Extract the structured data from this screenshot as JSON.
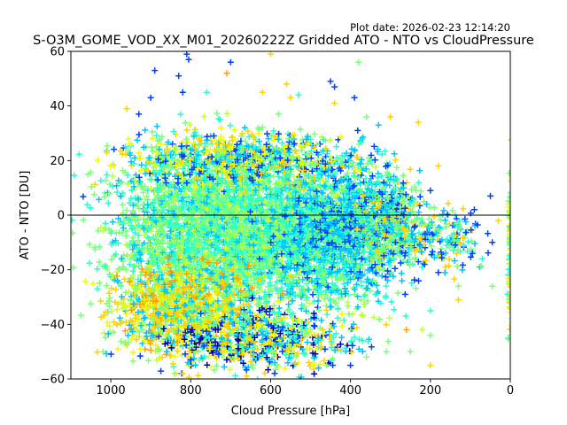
{
  "chart_data": {
    "type": "scatter",
    "title": "S-O3M_GOME_VOD_XX_M01_20260222Z Gridded ATO - NTO vs CloudPressure",
    "plot_date": "Plot date: 2026-02-23 12:14:20",
    "xlabel": "Cloud Pressure [hPa]",
    "ylabel": "ATO - NTO [DU]",
    "xlim": [
      1100,
      0
    ],
    "ylim": [
      -60,
      60
    ],
    "x_reversed": true,
    "xticks": [
      1000,
      800,
      600,
      400,
      200,
      0
    ],
    "yticks": [
      -60,
      -40,
      -20,
      0,
      20,
      40,
      60
    ],
    "xtick_labels": [
      "1000",
      "800",
      "600",
      "400",
      "200",
      "0"
    ],
    "ytick_labels": [
      "−60",
      "−40",
      "−20",
      "0",
      "20",
      "40",
      "60"
    ],
    "reference_line_y": 0,
    "marker": "+",
    "grid": false,
    "legend": false,
    "colors": [
      "#7cff79",
      "#25ffd1",
      "#00c4ff",
      "#ffd200",
      "#ff9f00",
      "#0040ff",
      "#0000a0",
      "#c4ff36",
      "#edff00"
    ],
    "density_ellipses": [
      {
        "cx": 750,
        "cy": -5,
        "rx": 250,
        "ry": 28,
        "n": 2600,
        "palette": [
          0,
          0,
          0,
          1,
          1,
          2,
          7
        ]
      },
      {
        "cx": 520,
        "cy": -6,
        "rx": 230,
        "ry": 30,
        "n": 1500,
        "palette": [
          0,
          0,
          1,
          1,
          2,
          7
        ]
      },
      {
        "cx": 820,
        "cy": -34,
        "rx": 180,
        "ry": 16,
        "n": 900,
        "palette": [
          3,
          3,
          8,
          7,
          0,
          4,
          2
        ]
      },
      {
        "cx": 640,
        "cy": -45,
        "rx": 240,
        "ry": 12,
        "n": 700,
        "palette": [
          2,
          0,
          1,
          5,
          3,
          8,
          6
        ]
      },
      {
        "cx": 420,
        "cy": -4,
        "rx": 170,
        "ry": 22,
        "n": 900,
        "palette": [
          2,
          2,
          1,
          0,
          5
        ]
      },
      {
        "cx": 300,
        "cy": -3,
        "rx": 90,
        "ry": 17,
        "n": 400,
        "palette": [
          1,
          2,
          0,
          0,
          5,
          3
        ]
      },
      {
        "cx": 160,
        "cy": -8,
        "rx": 90,
        "ry": 11,
        "n": 160,
        "palette": [
          0,
          1,
          2,
          3,
          5
        ]
      },
      {
        "cx": 700,
        "cy": 20,
        "rx": 300,
        "ry": 10,
        "n": 700,
        "palette": [
          3,
          0,
          2,
          1,
          8,
          5
        ]
      },
      {
        "cx": 0,
        "cy": -15,
        "rx": 6,
        "ry": 30,
        "n": 120,
        "palette": [
          0,
          1,
          3,
          8
        ]
      }
    ],
    "outliers": [
      {
        "x": 810,
        "y": 59,
        "c": 5
      },
      {
        "x": 805,
        "y": 57,
        "c": 5
      },
      {
        "x": 890,
        "y": 53,
        "c": 5
      },
      {
        "x": 830,
        "y": 51,
        "c": 5
      },
      {
        "x": 820,
        "y": 45,
        "c": 5
      },
      {
        "x": 700,
        "y": 56,
        "c": 5
      },
      {
        "x": 710,
        "y": 52,
        "c": 4
      },
      {
        "x": 600,
        "y": 59,
        "c": 3
      },
      {
        "x": 530,
        "y": 44,
        "c": 1
      },
      {
        "x": 450,
        "y": 49,
        "c": 5
      },
      {
        "x": 440,
        "y": 47,
        "c": 5
      },
      {
        "x": 440,
        "y": 41,
        "c": 3
      },
      {
        "x": 380,
        "y": 56,
        "c": 0
      },
      {
        "x": 390,
        "y": 43,
        "c": 5
      },
      {
        "x": 560,
        "y": 48,
        "c": 3
      },
      {
        "x": 620,
        "y": 45,
        "c": 3
      },
      {
        "x": 760,
        "y": 45,
        "c": 1
      },
      {
        "x": 960,
        "y": 39,
        "c": 3
      },
      {
        "x": 550,
        "y": 43,
        "c": 3
      },
      {
        "x": 360,
        "y": 36,
        "c": 0
      },
      {
        "x": 330,
        "y": 33,
        "c": 2
      },
      {
        "x": 300,
        "y": 36,
        "c": 3
      },
      {
        "x": 230,
        "y": 34,
        "c": 3
      },
      {
        "x": 200,
        "y": 9,
        "c": 5
      },
      {
        "x": 180,
        "y": 18,
        "c": 3
      },
      {
        "x": 90,
        "y": 2,
        "c": 5
      },
      {
        "x": 50,
        "y": 7,
        "c": 5
      },
      {
        "x": 30,
        "y": -2,
        "c": 3
      },
      {
        "x": 45,
        "y": -10,
        "c": 5
      },
      {
        "x": 70,
        "y": -16,
        "c": 1
      },
      {
        "x": 180,
        "y": -21,
        "c": 5
      },
      {
        "x": 45,
        "y": -26,
        "c": 0
      },
      {
        "x": 130,
        "y": -31,
        "c": 3
      },
      {
        "x": 200,
        "y": -44,
        "c": 0
      },
      {
        "x": 200,
        "y": -55,
        "c": 3
      },
      {
        "x": 260,
        "y": -42,
        "c": 4
      },
      {
        "x": 310,
        "y": -50,
        "c": 0
      },
      {
        "x": 370,
        "y": -46,
        "c": 1
      },
      {
        "x": 360,
        "y": -52,
        "c": 0
      },
      {
        "x": 590,
        "y": -58,
        "c": 5
      },
      {
        "x": 590,
        "y": -54,
        "c": 2
      },
      {
        "x": 840,
        "y": -58,
        "c": 0
      },
      {
        "x": 800,
        "y": -53,
        "c": 5
      },
      {
        "x": 820,
        "y": -58,
        "c": 3
      },
      {
        "x": 660,
        "y": -59,
        "c": 3
      },
      {
        "x": 860,
        "y": -50,
        "c": 2
      },
      {
        "x": 730,
        "y": -51,
        "c": 5
      },
      {
        "x": 460,
        "y": -55,
        "c": 0
      },
      {
        "x": 480,
        "y": -56,
        "c": 2
      },
      {
        "x": 400,
        "y": -55,
        "c": 5
      },
      {
        "x": 250,
        "y": -50,
        "c": 0
      },
      {
        "x": 200,
        "y": -35,
        "c": 1
      },
      {
        "x": 95,
        "y": -14,
        "c": 5
      },
      {
        "x": 130,
        "y": -26,
        "c": 0
      },
      {
        "x": 900,
        "y": 43,
        "c": 5
      },
      {
        "x": 930,
        "y": 37,
        "c": 5
      },
      {
        "x": 1010,
        "y": 23,
        "c": 3
      }
    ]
  }
}
